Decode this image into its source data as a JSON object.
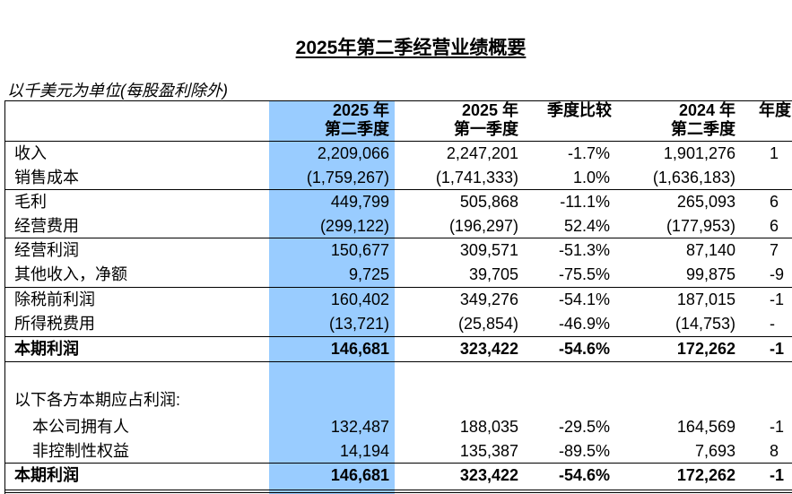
{
  "title": "2025年第二季经营业绩概要",
  "unit_note": "以千美元为单位(每股盈利除外)",
  "headers": {
    "col1": {
      "line1": "2025 年",
      "line2": "第二季度"
    },
    "col2": {
      "line1": "2025 年",
      "line2": "第一季度"
    },
    "col3": {
      "line1": "季度比较",
      "line2": ""
    },
    "col4": {
      "line1": "2024 年",
      "line2": "第二季度"
    },
    "col5": {
      "line1": "年度",
      "line2": ""
    }
  },
  "rows": [
    {
      "label": "收入",
      "v1": "2,209,066",
      "v2": "2,247,201",
      "v3": "-1.7%",
      "v4": "1,901,276",
      "v5": "1"
    },
    {
      "label": "销售成本",
      "v1": "(1,759,267)",
      "v2": "(1,741,333)",
      "v3": "1.0%",
      "v4": "(1,636,183)",
      "v5": ""
    },
    {
      "label": "毛利",
      "v1": "449,799",
      "v2": "505,868",
      "v3": "-11.1%",
      "v4": "265,093",
      "v5": "6"
    },
    {
      "label": "经营费用",
      "v1": "(299,122)",
      "v2": "(196,297)",
      "v3": "52.4%",
      "v4": "(177,953)",
      "v5": "6"
    },
    {
      "label": "经营利润",
      "v1": "150,677",
      "v2": "309,571",
      "v3": "-51.3%",
      "v4": "87,140",
      "v5": "7"
    },
    {
      "label": "其他收入，净额",
      "v1": "9,725",
      "v2": "39,705",
      "v3": "-75.5%",
      "v4": "99,875",
      "v5": "-9"
    },
    {
      "label": "除税前利润",
      "v1": "160,402",
      "v2": "349,276",
      "v3": "-54.1%",
      "v4": "187,015",
      "v5": "-1"
    },
    {
      "label": "所得税费用",
      "v1": "(13,721)",
      "v2": "(25,854)",
      "v3": "-46.9%",
      "v4": "(14,753)",
      "v5": "-"
    },
    {
      "label": "本期利润",
      "v1": "146,681",
      "v2": "323,422",
      "v3": "-54.6%",
      "v4": "172,262",
      "v5": "-1"
    }
  ],
  "attribution_heading": "以下各方本期应占利润:",
  "attribution_rows": [
    {
      "label": "本公司拥有人",
      "v1": "132,487",
      "v2": "188,035",
      "v3": "-29.5%",
      "v4": "164,569",
      "v5": "-1"
    },
    {
      "label": "非控制性权益",
      "v1": "14,194",
      "v2": "135,387",
      "v3": "-89.5%",
      "v4": "7,693",
      "v5": "8"
    }
  ],
  "final_row": {
    "label": "本期利润",
    "v1": "146,681",
    "v2": "323,422",
    "v3": "-54.6%",
    "v4": "172,262",
    "v5": "-1"
  }
}
